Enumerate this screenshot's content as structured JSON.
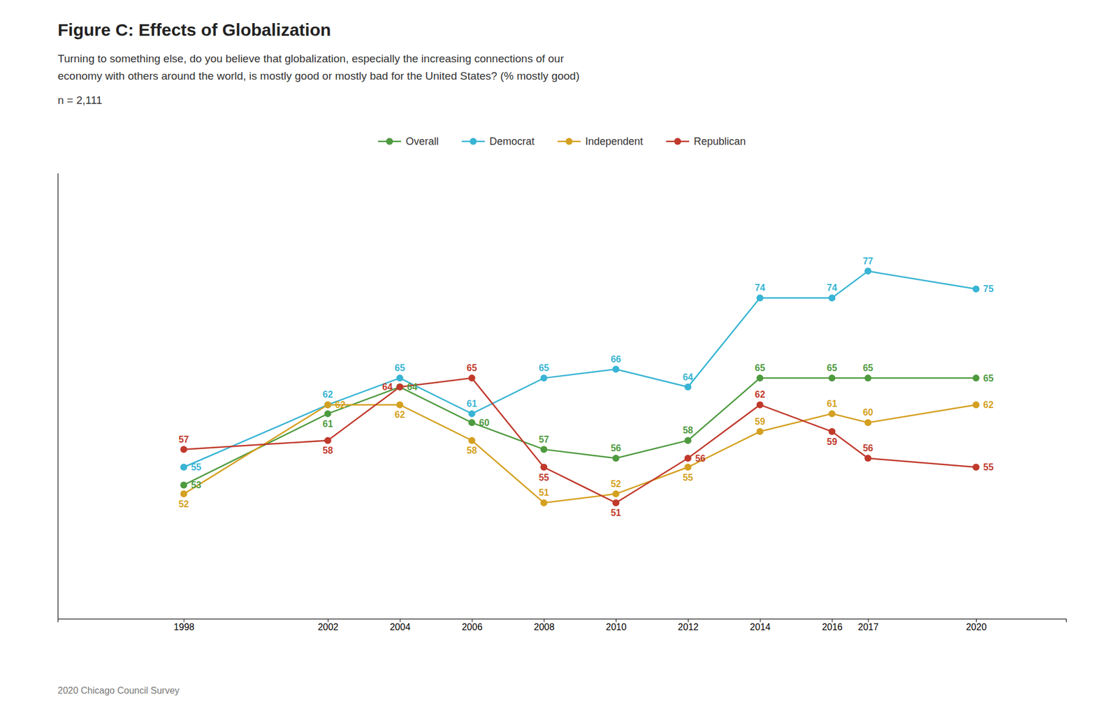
{
  "chart_data": {
    "type": "line",
    "title": "Figure C: Effects of Globalization",
    "subtitle": [
      "Turning to something else, do you believe that globalization, especially the increasing connections of our",
      "economy with others around the world, is mostly good or mostly bad for the United States? (% mostly good)"
    ],
    "annotations": [
      "n = 2,111",
      "2020 Chicago Council Survey"
    ],
    "x": [
      1998,
      2002,
      2004,
      2006,
      2008,
      2010,
      2012,
      2014,
      2016,
      2017,
      2020
    ],
    "xlim": [
      1994.5,
      2022.5
    ],
    "xticks": [
      1998,
      2002,
      2004,
      2006,
      2008,
      2010,
      2012,
      2014,
      2016,
      2017,
      2020
    ],
    "ylim": [
      38,
      88
    ],
    "tick_labels": "x",
    "grid": false,
    "legend": "top",
    "data_labels": true,
    "marker": "circle",
    "series": [
      {
        "name": "Overall",
        "color": "#4e9a3f",
        "values": [
          53,
          61,
          64,
          60,
          57,
          56,
          58,
          65,
          65,
          65,
          65
        ]
      },
      {
        "name": "Democrat",
        "color": "#38b4d4",
        "values": [
          55,
          62,
          65,
          61,
          65,
          66,
          64,
          74,
          74,
          77,
          75
        ]
      },
      {
        "name": "Independent",
        "color": "#d4a020",
        "values": [
          52,
          62,
          62,
          58,
          51,
          52,
          55,
          59,
          61,
          60,
          62
        ]
      },
      {
        "name": "Republican",
        "color": "#c0392b",
        "values": [
          57,
          58,
          64,
          65,
          55,
          51,
          56,
          62,
          59,
          56,
          55
        ]
      }
    ]
  }
}
